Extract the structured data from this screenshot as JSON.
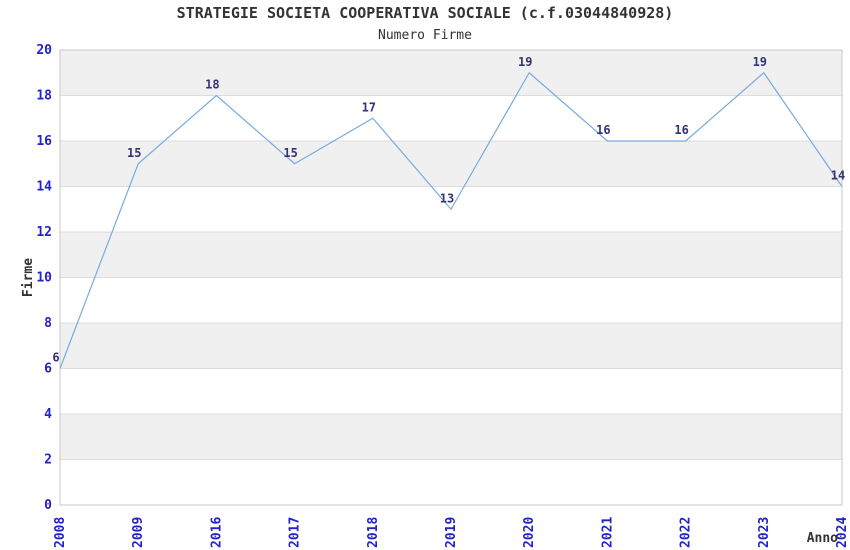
{
  "chart_data": {
    "type": "line",
    "title": "STRATEGIE SOCIETA COOPERATIVA SOCIALE (c.f.03044840928)",
    "subtitle": "Numero Firme",
    "categories": [
      "2008",
      "2009",
      "2016",
      "2017",
      "2018",
      "2019",
      "2020",
      "2021",
      "2022",
      "2023",
      "2024"
    ],
    "values": [
      6,
      15,
      18,
      15,
      17,
      13,
      19,
      16,
      16,
      19,
      14
    ],
    "xlabel": "Anno",
    "ylabel": "Firme",
    "ylim": [
      0,
      20
    ],
    "ytick_step": 2,
    "yticks": [
      0,
      2,
      4,
      6,
      8,
      10,
      12,
      14,
      16,
      18,
      20
    ],
    "grid": "horizontal-alternating-bands",
    "legend_position": "none",
    "value_labels_shown": true,
    "x_tick_rotation_deg": 90,
    "colors": {
      "line": "#7aaade",
      "axis_tick_label": "#2222cc",
      "value_label": "#333377",
      "band_gray": "#f0f0f0",
      "band_white": "#ffffff",
      "gridline": "#dcdcdc",
      "plot_border": "#c9c9c9",
      "title_text": "#333333",
      "background": "#ffffff"
    }
  }
}
